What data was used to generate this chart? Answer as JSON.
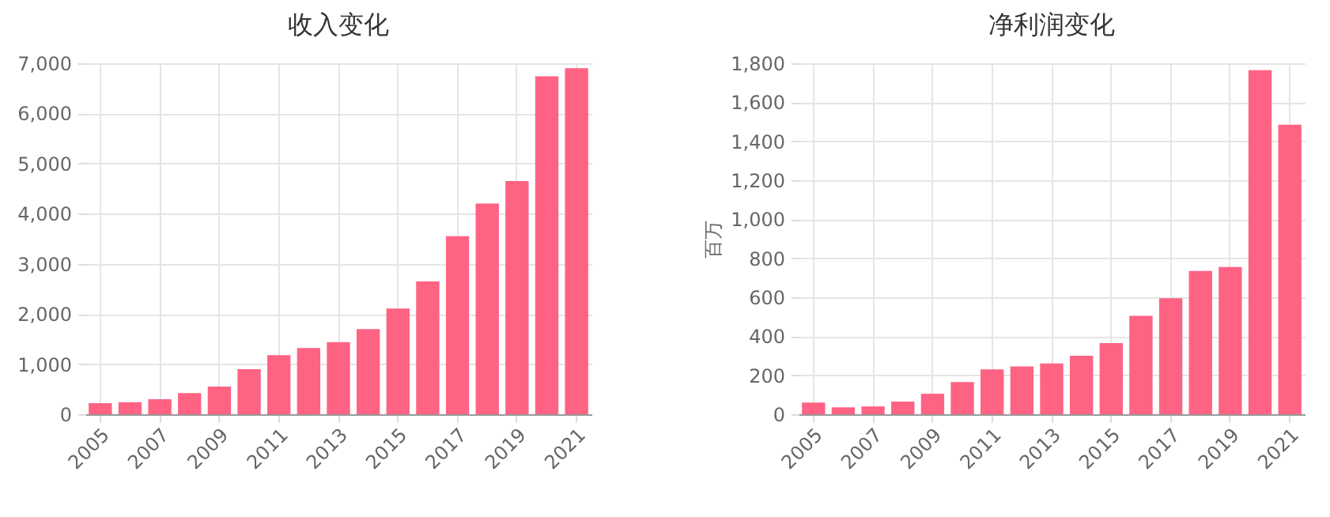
{
  "chart_data": [
    {
      "type": "bar",
      "title": "收入变化",
      "categories": [
        "2005",
        null,
        "2007",
        null,
        "2009",
        null,
        "2011",
        null,
        "2013",
        null,
        "2015",
        null,
        "2017",
        null,
        "2019",
        null,
        "2021"
      ],
      "values": [
        220,
        240,
        300,
        420,
        550,
        900,
        1180,
        1320,
        1440,
        1700,
        2110,
        2650,
        3550,
        4200,
        4650,
        6740,
        6900
      ],
      "color": "#ff6384",
      "ylim": [
        0,
        7000
      ],
      "yticks": [
        0,
        {
          "value": 1000,
          "label": "1,000"
        },
        {
          "value": 2000,
          "label": "2,000"
        },
        {
          "value": 3000,
          "label": "3,000"
        },
        {
          "value": 4000,
          "label": "4,000"
        },
        {
          "value": 5000,
          "label": "5,000"
        },
        {
          "value": 6000,
          "label": "6,000"
        },
        {
          "value": 7000,
          "label": "7,000"
        }
      ],
      "grid": true
    },
    {
      "type": "bar",
      "title": "净利润变化",
      "ylabel": "百万",
      "categories": [
        "2005",
        null,
        "2007",
        null,
        "2009",
        null,
        "2011",
        null,
        "2013",
        null,
        "2015",
        null,
        "2017",
        null,
        "2019",
        null,
        "2021"
      ],
      "values": [
        60,
        35,
        40,
        65,
        105,
        165,
        230,
        245,
        260,
        300,
        365,
        505,
        595,
        735,
        755,
        1765,
        1485
      ],
      "color": "#ff6384",
      "ylim": [
        0,
        1800
      ],
      "yticks": [
        0,
        200,
        400,
        600,
        800,
        {
          "value": 1000,
          "label": "1,000"
        },
        {
          "value": 1200,
          "label": "1,200"
        },
        {
          "value": 1400,
          "label": "1,400"
        },
        {
          "value": 1600,
          "label": "1,600"
        },
        {
          "value": 1800,
          "label": "1,800"
        }
      ],
      "grid": true
    }
  ]
}
